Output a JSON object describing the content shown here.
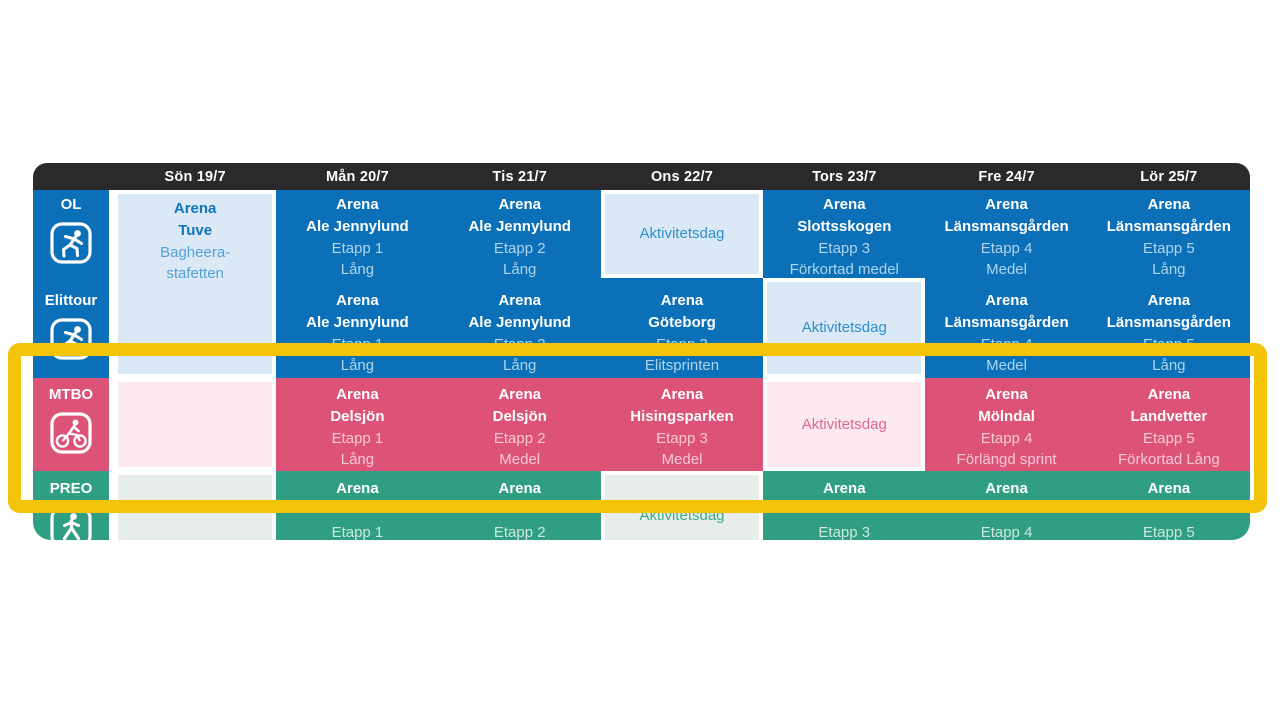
{
  "colors": {
    "header_bg": "#2B292B",
    "blue": "#0C70B8",
    "blue_light": "#DBE8F5",
    "pink": "#DD5377",
    "pink_light": "#FBE9EF",
    "green": "#2F9E82",
    "green_light": "#E7EEEA",
    "highlight_yellow": "#F4C40A",
    "white": "#FFFFFF"
  },
  "table": {
    "days": [
      "Sön 19/7",
      "Mån 20/7",
      "Tis 21/7",
      "Ons 22/7",
      "Tors 23/7",
      "Fre 24/7",
      "Lör 25/7"
    ],
    "rows": [
      {
        "label": "OL",
        "icon": "orienteering-runner-icon",
        "theme": "blue",
        "cells": [
          {
            "day": 0,
            "variant": "light",
            "rowspan": 2,
            "lines": [
              {
                "text": "Arena",
                "style": "title"
              },
              {
                "text": "Tuve",
                "style": "title"
              },
              {
                "text": "Bagheera-",
                "style": "sub"
              },
              {
                "text": "stafetten",
                "style": "sub"
              }
            ]
          },
          {
            "day": 1,
            "variant": "solid",
            "lines": [
              {
                "text": "Arena",
                "style": "title"
              },
              {
                "text": "Ale Jennylund",
                "style": "title"
              },
              {
                "text": "Etapp 1",
                "style": "sub"
              },
              {
                "text": "Lång",
                "style": "sub"
              }
            ]
          },
          {
            "day": 2,
            "variant": "solid",
            "lines": [
              {
                "text": "Arena",
                "style": "title"
              },
              {
                "text": "Ale Jennylund",
                "style": "title"
              },
              {
                "text": "Etapp 2",
                "style": "sub"
              },
              {
                "text": "Lång",
                "style": "sub"
              }
            ]
          },
          {
            "day": 3,
            "variant": "light",
            "lines": [
              {
                "text": "Aktivitetsdag",
                "style": "info"
              }
            ]
          },
          {
            "day": 4,
            "variant": "solid",
            "lines": [
              {
                "text": "Arena",
                "style": "title"
              },
              {
                "text": "Slottsskogen",
                "style": "title"
              },
              {
                "text": "Etapp 3",
                "style": "sub"
              },
              {
                "text": "Förkortad medel",
                "style": "sub"
              }
            ]
          },
          {
            "day": 5,
            "variant": "solid",
            "lines": [
              {
                "text": "Arena",
                "style": "title"
              },
              {
                "text": "Länsmansgården",
                "style": "title"
              },
              {
                "text": "Etapp 4",
                "style": "sub"
              },
              {
                "text": "Medel",
                "style": "sub"
              }
            ]
          },
          {
            "day": 6,
            "variant": "solid",
            "lines": [
              {
                "text": "Arena",
                "style": "title"
              },
              {
                "text": "Länsmansgården",
                "style": "title"
              },
              {
                "text": "Etapp 5",
                "style": "sub"
              },
              {
                "text": "Lång",
                "style": "sub"
              }
            ]
          }
        ]
      },
      {
        "label": "Elittour",
        "icon": "orienteering-runner-icon",
        "theme": "blue",
        "cells": [
          {
            "day": 1,
            "variant": "solid",
            "lines": [
              {
                "text": "Arena",
                "style": "title"
              },
              {
                "text": "Ale Jennylund",
                "style": "title"
              },
              {
                "text": "Etapp 1",
                "style": "sub"
              },
              {
                "text": "Lång",
                "style": "sub"
              }
            ]
          },
          {
            "day": 2,
            "variant": "solid",
            "lines": [
              {
                "text": "Arena",
                "style": "title"
              },
              {
                "text": "Ale Jennylund",
                "style": "title"
              },
              {
                "text": "Etapp 2",
                "style": "sub"
              },
              {
                "text": "Lång",
                "style": "sub"
              }
            ]
          },
          {
            "day": 3,
            "variant": "solid",
            "lines": [
              {
                "text": "Arena",
                "style": "title"
              },
              {
                "text": "Göteborg",
                "style": "title"
              },
              {
                "text": "Etapp 3",
                "style": "sub"
              },
              {
                "text": "Elitsprinten",
                "style": "sub"
              }
            ]
          },
          {
            "day": 4,
            "variant": "light",
            "lines": [
              {
                "text": "Aktivitetsdag",
                "style": "info"
              }
            ]
          },
          {
            "day": 5,
            "variant": "solid",
            "lines": [
              {
                "text": "Arena",
                "style": "title"
              },
              {
                "text": "Länsmansgården",
                "style": "title"
              },
              {
                "text": "Etapp 4",
                "style": "sub"
              },
              {
                "text": "Medel",
                "style": "sub"
              }
            ]
          },
          {
            "day": 6,
            "variant": "solid",
            "lines": [
              {
                "text": "Arena",
                "style": "title"
              },
              {
                "text": "Länsmansgården",
                "style": "title"
              },
              {
                "text": "Etapp 5",
                "style": "sub"
              },
              {
                "text": "Lång",
                "style": "sub"
              }
            ]
          }
        ]
      },
      {
        "label": "MTBO",
        "icon": "mountain-bike-icon",
        "theme": "pink",
        "cells": [
          {
            "day": 0,
            "variant": "light",
            "lines": []
          },
          {
            "day": 1,
            "variant": "solid",
            "lines": [
              {
                "text": "Arena",
                "style": "title"
              },
              {
                "text": "Delsjön",
                "style": "title"
              },
              {
                "text": "Etapp 1",
                "style": "sub"
              },
              {
                "text": "Lång",
                "style": "sub"
              }
            ]
          },
          {
            "day": 2,
            "variant": "solid",
            "lines": [
              {
                "text": "Arena",
                "style": "title"
              },
              {
                "text": "Delsjön",
                "style": "title"
              },
              {
                "text": "Etapp 2",
                "style": "sub"
              },
              {
                "text": "Medel",
                "style": "sub"
              }
            ]
          },
          {
            "day": 3,
            "variant": "solid",
            "lines": [
              {
                "text": "Arena",
                "style": "title"
              },
              {
                "text": "Hisingsparken",
                "style": "title"
              },
              {
                "text": "Etapp 3",
                "style": "sub"
              },
              {
                "text": "Medel",
                "style": "sub"
              }
            ]
          },
          {
            "day": 4,
            "variant": "light",
            "lines": [
              {
                "text": "Aktivitetsdag",
                "style": "info"
              }
            ]
          },
          {
            "day": 5,
            "variant": "solid",
            "lines": [
              {
                "text": "Arena",
                "style": "title"
              },
              {
                "text": "Mölndal",
                "style": "title"
              },
              {
                "text": "Etapp 4",
                "style": "sub"
              },
              {
                "text": "Förlängd sprint",
                "style": "sub"
              }
            ]
          },
          {
            "day": 6,
            "variant": "solid",
            "lines": [
              {
                "text": "Arena",
                "style": "title"
              },
              {
                "text": "Landvetter",
                "style": "title"
              },
              {
                "text": "Etapp 5",
                "style": "sub"
              },
              {
                "text": "Förkortad Lång",
                "style": "sub"
              }
            ]
          }
        ]
      },
      {
        "label": "PREO",
        "icon": "trail-o-person-icon",
        "theme": "green",
        "cells": [
          {
            "day": 0,
            "variant": "light",
            "lines": []
          },
          {
            "day": 1,
            "variant": "solid",
            "lines": [
              {
                "text": "Arena",
                "style": "title"
              },
              {
                "text": "",
                "style": "title"
              },
              {
                "text": "Etapp 1",
                "style": "sub"
              }
            ]
          },
          {
            "day": 2,
            "variant": "solid",
            "lines": [
              {
                "text": "Arena",
                "style": "title"
              },
              {
                "text": "",
                "style": "title"
              },
              {
                "text": "Etapp 2",
                "style": "sub"
              }
            ]
          },
          {
            "day": 3,
            "variant": "light",
            "lines": [
              {
                "text": "Aktivitetsdag",
                "style": "info"
              }
            ]
          },
          {
            "day": 4,
            "variant": "solid",
            "lines": [
              {
                "text": "Arena",
                "style": "title"
              },
              {
                "text": "",
                "style": "title"
              },
              {
                "text": "Etapp 3",
                "style": "sub"
              }
            ]
          },
          {
            "day": 5,
            "variant": "solid",
            "lines": [
              {
                "text": "Arena",
                "style": "title"
              },
              {
                "text": "",
                "style": "title"
              },
              {
                "text": "Etapp 4",
                "style": "sub"
              }
            ]
          },
          {
            "day": 6,
            "variant": "solid",
            "lines": [
              {
                "text": "Arena",
                "style": "title"
              },
              {
                "text": "",
                "style": "title"
              },
              {
                "text": "Etapp 5",
                "style": "sub"
              }
            ]
          }
        ]
      }
    ]
  },
  "highlight": {
    "shape": "rectangle",
    "color": "#F4C40A",
    "around": "MTBO row"
  }
}
